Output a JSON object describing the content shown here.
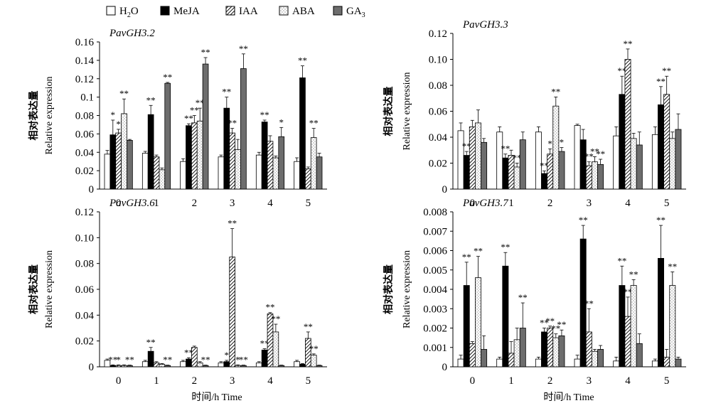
{
  "legend": {
    "items": [
      {
        "label": "H",
        "sub": "2",
        "tail": "O",
        "pattern": "white"
      },
      {
        "label": "MeJA",
        "sub": "",
        "tail": "",
        "pattern": "black"
      },
      {
        "label": "IAA",
        "sub": "",
        "tail": "",
        "pattern": "hatch"
      },
      {
        "label": "ABA",
        "sub": "",
        "tail": "",
        "pattern": "dots"
      },
      {
        "label": "GA",
        "sub": "3",
        "tail": "",
        "pattern": "gray"
      }
    ]
  },
  "x_axis_title": "时间/h Time",
  "y_axis_title_cn": "相对表达量",
  "y_axis_title_en": "Relative expression",
  "chart_data": [
    {
      "type": "bar",
      "title": "PavGH3.2",
      "categories": [
        "0",
        "1",
        "2",
        "3",
        "4",
        "5"
      ],
      "ylim": [
        0,
        0.16
      ],
      "yticks": [
        "0",
        "0.02",
        "0.04",
        "0.06",
        "0.08",
        "0.1",
        "0.12",
        "0.14",
        "0.16"
      ],
      "series": [
        {
          "name": "H2O",
          "values": [
            0.038,
            0.039,
            0.03,
            0.035,
            0.037,
            0.03
          ],
          "errors": [
            0.004,
            0.002,
            0.003,
            0.002,
            0.003,
            0.004
          ],
          "marks": [
            "",
            "",
            "",
            "",
            "",
            ""
          ]
        },
        {
          "name": "MeJA",
          "values": [
            0.059,
            0.081,
            0.069,
            0.088,
            0.073,
            0.121
          ],
          "errors": [
            0.016,
            0.01,
            0.002,
            0.012,
            0.002,
            0.013
          ],
          "marks": [
            "*",
            "**",
            "**",
            "**",
            "**",
            "**"
          ]
        },
        {
          "name": "IAA",
          "values": [
            0.061,
            0.035,
            0.072,
            0.061,
            0.052,
            0.022
          ],
          "errors": [
            0.004,
            0.002,
            0.008,
            0.005,
            0.006,
            0.002
          ],
          "marks": [
            "*",
            "",
            "**",
            "**",
            "",
            ""
          ]
        },
        {
          "name": "ABA",
          "values": [
            0.082,
            0.021,
            0.074,
            0.043,
            0.034,
            0.056
          ],
          "errors": [
            0.016,
            0.002,
            0.014,
            0.011,
            0.002,
            0.01
          ],
          "marks": [
            "**",
            "",
            "**",
            "",
            "",
            "**"
          ]
        },
        {
          "name": "GA3",
          "values": [
            0.053,
            0.115,
            0.136,
            0.131,
            0.057,
            0.035
          ],
          "errors": [
            0.001,
            0.001,
            0.007,
            0.016,
            0.01,
            0.004
          ],
          "marks": [
            "",
            "**",
            "**",
            "**",
            "*",
            ""
          ]
        }
      ]
    },
    {
      "type": "bar",
      "title": "PavGH3.3",
      "categories": [
        "0",
        "1",
        "2",
        "3",
        "4",
        "5"
      ],
      "ylim": [
        0,
        0.12
      ],
      "yticks": [
        "0",
        "0.02",
        "0.04",
        "0.06",
        "0.08",
        "0.10",
        "0.12"
      ],
      "series": [
        {
          "name": "H2O",
          "values": [
            0.045,
            0.044,
            0.044,
            0.049,
            0.041,
            0.042
          ],
          "errors": [
            0.006,
            0.004,
            0.004,
            0.001,
            0.007,
            0.006
          ],
          "marks": [
            "",
            "",
            "",
            "",
            "",
            ""
          ]
        },
        {
          "name": "MeJA",
          "values": [
            0.026,
            0.024,
            0.012,
            0.038,
            0.073,
            0.065
          ],
          "errors": [
            0.003,
            0.003,
            0.002,
            0.008,
            0.014,
            0.014
          ],
          "marks": [
            "**",
            "**",
            "**",
            "",
            "**",
            "**"
          ]
        },
        {
          "name": "IAA",
          "values": [
            0.048,
            0.026,
            0.027,
            0.018,
            0.1,
            0.073
          ],
          "errors": [
            0.005,
            0.004,
            0.004,
            0.003,
            0.008,
            0.014
          ],
          "marks": [
            "",
            "",
            "*",
            "**",
            "**",
            "**"
          ]
        },
        {
          "name": "ABA",
          "values": [
            0.051,
            0.017,
            0.064,
            0.021,
            0.039,
            0.039
          ],
          "errors": [
            0.01,
            0.003,
            0.007,
            0.004,
            0.004,
            0.005
          ],
          "marks": [
            "",
            "**",
            "**",
            "**",
            "",
            ""
          ]
        },
        {
          "name": "GA3",
          "values": [
            0.036,
            0.038,
            0.029,
            0.019,
            0.034,
            0.046
          ],
          "errors": [
            0.003,
            0.006,
            0.003,
            0.004,
            0.01,
            0.012
          ],
          "marks": [
            "",
            "",
            "*",
            "**",
            "",
            ""
          ]
        }
      ]
    },
    {
      "type": "bar",
      "title": "PavGH3.6",
      "categories": [
        "0",
        "1",
        "2",
        "3",
        "4",
        "5"
      ],
      "ylim": [
        0,
        0.12
      ],
      "yticks": [
        "0",
        "0.02",
        "0.04",
        "0.06",
        "0.08",
        "0.10",
        "0.12"
      ],
      "series": [
        {
          "name": "H2O",
          "values": [
            0.005,
            0.004,
            0.004,
            0.003,
            0.003,
            0.004
          ],
          "errors": [
            0.001,
            0.001,
            0.001,
            0.001,
            0.001,
            0.001
          ],
          "marks": [
            "",
            "",
            "",
            "",
            "",
            ""
          ]
        },
        {
          "name": "MeJA",
          "values": [
            0.001,
            0.012,
            0.006,
            0.004,
            0.013,
            0.002
          ],
          "errors": [
            0.0005,
            0.003,
            0.001,
            0.001,
            0.001,
            0.0005
          ],
          "marks": [
            "**",
            "**",
            "**",
            "*",
            "**",
            ""
          ]
        },
        {
          "name": "IAA",
          "values": [
            0.001,
            0.003,
            0.015,
            0.085,
            0.041,
            0.022
          ],
          "errors": [
            0.0005,
            0.001,
            0.001,
            0.022,
            0.001,
            0.005
          ],
          "marks": [
            "*",
            "",
            "",
            "**",
            "**",
            "**"
          ]
        },
        {
          "name": "ABA",
          "values": [
            0.001,
            0.002,
            0.003,
            0.001,
            0.027,
            0.009
          ],
          "errors": [
            0.0005,
            0.0005,
            0.001,
            0.0005,
            0.006,
            0.001
          ],
          "marks": [
            "",
            "",
            "",
            "*",
            "**",
            "**"
          ]
        },
        {
          "name": "GA3",
          "values": [
            0.001,
            0.001,
            0.001,
            0.001,
            0.001,
            0.001
          ],
          "errors": [
            0.0003,
            0.0003,
            0.0003,
            0.0003,
            0.0003,
            0.0003
          ],
          "marks": [
            "**",
            "**",
            "**",
            "**",
            "",
            ""
          ]
        }
      ]
    },
    {
      "type": "bar",
      "title": "PavGH3.7",
      "categories": [
        "0",
        "1",
        "2",
        "3",
        "4",
        "5"
      ],
      "ylim": [
        0,
        0.008
      ],
      "yticks": [
        "0",
        "0.001",
        "0.002",
        "0.003",
        "0.004",
        "0.005",
        "0.006",
        "0.007",
        "0.008"
      ],
      "series": [
        {
          "name": "H2O",
          "values": [
            0.0004,
            0.0004,
            0.0004,
            0.0004,
            0.0003,
            0.0003
          ],
          "errors": [
            0.0002,
            0.0001,
            0.0001,
            0.0002,
            0.0002,
            0.0001
          ],
          "marks": [
            "",
            "",
            "",
            "",
            "",
            ""
          ]
        },
        {
          "name": "MeJA",
          "values": [
            0.0042,
            0.0052,
            0.0018,
            0.0066,
            0.0042,
            0.0056
          ],
          "errors": [
            0.0012,
            0.0007,
            0.0002,
            0.0007,
            0.001,
            0.0017
          ],
          "marks": [
            "**",
            "**",
            "**",
            "**",
            "**",
            "**"
          ]
        },
        {
          "name": "IAA",
          "values": [
            0.0012,
            0.0007,
            0.002,
            0.0018,
            0.0026,
            0.0005
          ],
          "errors": [
            0.0001,
            0.0006,
            0.0001,
            0.0012,
            0.001,
            0.0004
          ],
          "marks": [
            "",
            "",
            "**",
            "**",
            "**",
            ""
          ]
        },
        {
          "name": "ABA",
          "values": [
            0.0046,
            0.0014,
            0.0015,
            0.0008,
            0.0042,
            0.0042
          ],
          "errors": [
            0.0011,
            0.0006,
            0.0002,
            0.0001,
            0.0003,
            0.0007
          ],
          "marks": [
            "**",
            "",
            "**",
            "",
            "**",
            "**"
          ]
        },
        {
          "name": "GA3",
          "values": [
            0.0009,
            0.002,
            0.0016,
            0.0009,
            0.0012,
            0.0004
          ],
          "errors": [
            0.0007,
            0.0013,
            0.0003,
            0.0002,
            0.0005,
            0.0001
          ],
          "marks": [
            "",
            "**",
            "**",
            "",
            "",
            ""
          ]
        }
      ]
    }
  ]
}
